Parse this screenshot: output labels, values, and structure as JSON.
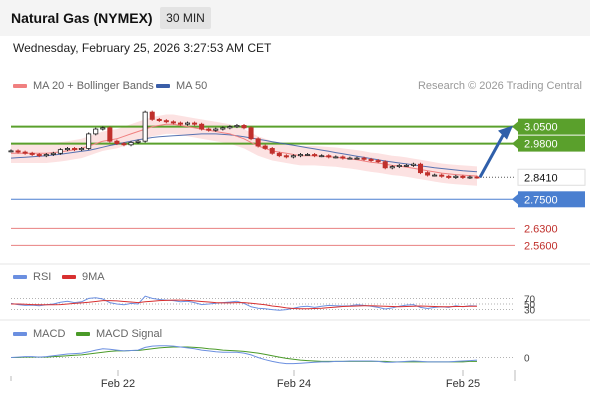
{
  "header": {
    "title": "Natural Gas (NYMEX)",
    "timeframe": "30 MIN",
    "datetime": "Wednesday, February 25, 2026 3:27:53 AM CET"
  },
  "legend": {
    "ma20_label": "MA 20 + Bollinger Bands",
    "ma50_label": "MA 50",
    "credit": "Research © 2026 Trading Central",
    "rsi_label": "RSI",
    "rsi_ma_label": "9MA",
    "macd_label": "MACD",
    "macd_signal_label": "MACD Signal"
  },
  "colors": {
    "ma20": "#f08080",
    "bollinger_fill": "#fbd8d8",
    "ma50": "#3a5ea8",
    "resistance": "#5aa02c",
    "pivot": "#4a7fd0",
    "support": "#e88080",
    "current": "#222222",
    "arrow": "#2f5faa",
    "rsi": "#6b8fe0",
    "rsi_ma": "#d83030",
    "macd": "#6b8fe0",
    "macd_signal": "#4a9a28",
    "candle_up": "#222222",
    "candle_down": "#c0302c"
  },
  "chart_data": [
    {
      "type": "candlestick",
      "title": "Natural Gas (NYMEX)",
      "timeframe": "30 MIN",
      "x_ticks": [
        "Feb 22",
        "Feb 24",
        "Feb 25"
      ],
      "ylim": [
        2.52,
        3.16
      ],
      "current_price": 2.841,
      "levels": [
        {
          "label": "3.0500",
          "value": 3.05,
          "kind": "resistance"
        },
        {
          "label": "2.9800",
          "value": 2.98,
          "kind": "resistance"
        },
        {
          "label": "2.8410",
          "value": 2.841,
          "kind": "current"
        },
        {
          "label": "2.7500",
          "value": 2.75,
          "kind": "pivot"
        },
        {
          "label": "2.6300",
          "value": 2.63,
          "kind": "support"
        },
        {
          "label": "2.5600",
          "value": 2.56,
          "kind": "support"
        }
      ],
      "forecast_target": 3.05,
      "close": [
        2.95,
        2.945,
        2.94,
        2.935,
        2.93,
        2.935,
        2.94,
        2.955,
        2.96,
        2.955,
        2.96,
        3.02,
        3.04,
        3.045,
        2.99,
        2.98,
        2.975,
        2.985,
        2.99,
        3.11,
        3.08,
        3.075,
        3.07,
        3.065,
        3.06,
        3.065,
        3.06,
        3.04,
        3.035,
        3.04,
        3.045,
        3.05,
        3.055,
        3.045,
        3.0,
        2.97,
        2.96,
        2.94,
        2.93,
        2.925,
        2.93,
        2.935,
        2.935,
        2.93,
        2.93,
        2.925,
        2.925,
        2.92,
        2.92,
        2.92,
        2.915,
        2.91,
        2.905,
        2.88,
        2.885,
        2.89,
        2.89,
        2.895,
        2.86,
        2.85,
        2.85,
        2.845,
        2.84,
        2.845,
        2.84,
        2.842,
        2.841
      ],
      "ma20": [
        2.94,
        2.94,
        2.94,
        2.94,
        2.94,
        2.94,
        2.943,
        2.946,
        2.95,
        2.955,
        2.96,
        2.97,
        2.98,
        2.99,
        2.995,
        3.0,
        3.01,
        3.02,
        3.03,
        3.04,
        3.05,
        3.055,
        3.06,
        3.06,
        3.055,
        3.05,
        3.045,
        3.04,
        3.035,
        3.03,
        3.025,
        3.02,
        3.01,
        3.0,
        2.985,
        2.97,
        2.96,
        2.95,
        2.945,
        2.94,
        2.935,
        2.93,
        2.93,
        2.93,
        2.928,
        2.926,
        2.924,
        2.92,
        2.917,
        2.913,
        2.908,
        2.903,
        2.9,
        2.895,
        2.89,
        2.887,
        2.883,
        2.878,
        2.873,
        2.868,
        2.863,
        2.858,
        2.855,
        2.852,
        2.85,
        2.848,
        2.846
      ],
      "ma50": [
        2.92,
        2.922,
        2.924,
        2.926,
        2.928,
        2.93,
        2.933,
        2.936,
        2.94,
        2.944,
        2.948,
        2.952,
        2.958,
        2.965,
        2.972,
        2.978,
        2.984,
        2.99,
        2.996,
        3.0,
        3.005,
        3.008,
        3.01,
        3.012,
        3.014,
        3.016,
        3.018,
        3.02,
        3.02,
        3.02,
        3.018,
        3.016,
        3.012,
        3.008,
        3.003,
        2.998,
        2.993,
        2.988,
        2.983,
        2.978,
        2.973,
        2.968,
        2.963,
        2.958,
        2.953,
        2.948,
        2.943,
        2.938,
        2.933,
        2.928,
        2.923,
        2.918,
        2.913,
        2.908,
        2.904,
        2.9,
        2.896,
        2.892,
        2.888,
        2.884,
        2.88,
        2.877,
        2.874,
        2.871,
        2.868,
        2.866,
        2.864
      ]
    },
    {
      "type": "line",
      "name_label": "RSI",
      "levels": [
        70,
        50,
        30
      ],
      "ylim": [
        0,
        100
      ],
      "rsi": [
        52,
        48,
        45,
        46,
        44,
        47,
        50,
        56,
        60,
        55,
        58,
        70,
        72,
        68,
        55,
        50,
        47,
        52,
        50,
        78,
        70,
        66,
        64,
        62,
        58,
        60,
        55,
        48,
        50,
        53,
        55,
        57,
        60,
        52,
        40,
        35,
        33,
        30,
        28,
        30,
        35,
        40,
        42,
        38,
        42,
        45,
        44,
        43,
        44,
        47,
        45,
        42,
        38,
        32,
        36,
        42,
        46,
        48,
        38,
        34,
        38,
        40,
        38,
        44,
        40,
        44,
        43
      ],
      "ma9": [
        50,
        50,
        49,
        48,
        47,
        47,
        47,
        48,
        50,
        52,
        54,
        56,
        59,
        62,
        62,
        61,
        59,
        57,
        55,
        58,
        60,
        62,
        63,
        64,
        64,
        63,
        61,
        59,
        57,
        55,
        54,
        54,
        55,
        55,
        53,
        50,
        47,
        43,
        40,
        36,
        34,
        33,
        33,
        34,
        35,
        37,
        39,
        41,
        42,
        43,
        44,
        44,
        43,
        42,
        41,
        40,
        41,
        42,
        43,
        42,
        41,
        40,
        40,
        41,
        41,
        42,
        42
      ]
    },
    {
      "type": "line",
      "name_label": "MACD",
      "levels": [
        0
      ],
      "ylim": [
        -0.04,
        0.04
      ],
      "macd": [
        0.0,
        0.001,
        0.002,
        0.002,
        0.001,
        0.002,
        0.004,
        0.006,
        0.008,
        0.009,
        0.01,
        0.013,
        0.017,
        0.02,
        0.019,
        0.017,
        0.015,
        0.016,
        0.017,
        0.023,
        0.026,
        0.027,
        0.027,
        0.026,
        0.024,
        0.022,
        0.02,
        0.017,
        0.015,
        0.013,
        0.012,
        0.012,
        0.012,
        0.01,
        0.006,
        0.0,
        -0.005,
        -0.009,
        -0.012,
        -0.014,
        -0.014,
        -0.013,
        -0.012,
        -0.011,
        -0.01,
        -0.01,
        -0.009,
        -0.009,
        -0.008,
        -0.008,
        -0.008,
        -0.008,
        -0.009,
        -0.011,
        -0.011,
        -0.01,
        -0.009,
        -0.008,
        -0.009,
        -0.01,
        -0.01,
        -0.01,
        -0.01,
        -0.009,
        -0.008,
        -0.007,
        -0.006
      ],
      "signal": [
        0.0,
        0.0,
        0.001,
        0.001,
        0.001,
        0.001,
        0.002,
        0.003,
        0.004,
        0.005,
        0.006,
        0.008,
        0.01,
        0.012,
        0.014,
        0.015,
        0.015,
        0.016,
        0.016,
        0.018,
        0.02,
        0.022,
        0.023,
        0.024,
        0.024,
        0.024,
        0.023,
        0.022,
        0.02,
        0.019,
        0.017,
        0.016,
        0.015,
        0.014,
        0.012,
        0.01,
        0.007,
        0.004,
        0.001,
        -0.002,
        -0.004,
        -0.006,
        -0.007,
        -0.008,
        -0.009,
        -0.009,
        -0.009,
        -0.009,
        -0.009,
        -0.009,
        -0.009,
        -0.009,
        -0.009,
        -0.009,
        -0.01,
        -0.01,
        -0.01,
        -0.01,
        -0.01,
        -0.01,
        -0.01,
        -0.01,
        -0.01,
        -0.01,
        -0.01,
        -0.009,
        -0.009
      ]
    }
  ]
}
